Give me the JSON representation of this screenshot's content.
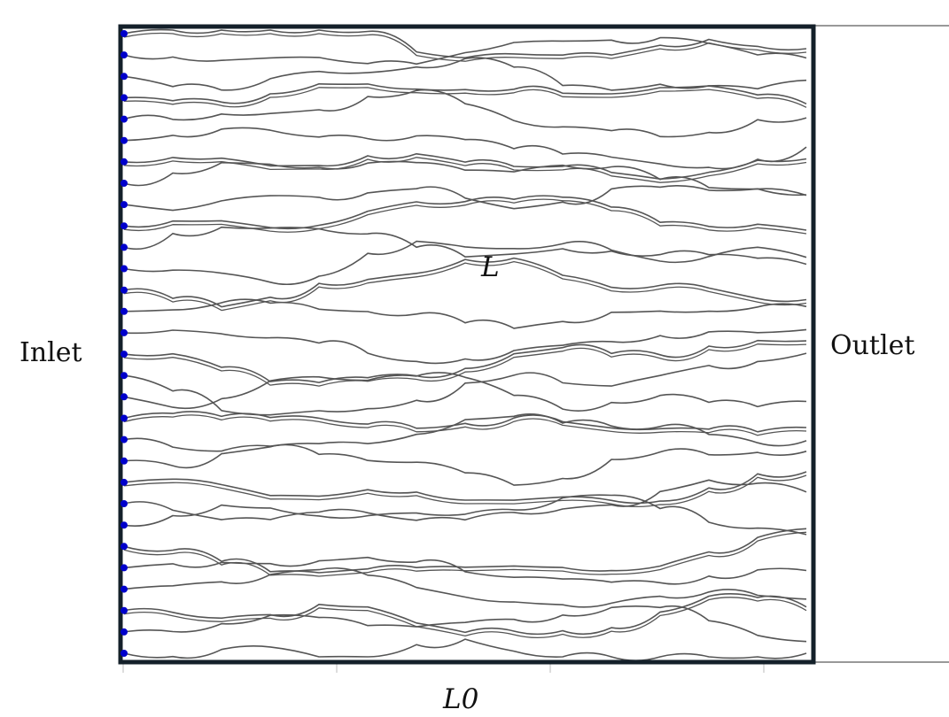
{
  "labels": {
    "inlet": "Inlet",
    "outlet": "Outlet",
    "tortuous_length": "L",
    "straight_length": "L0"
  },
  "colors": {
    "domain_border": "#14202a",
    "streamline": "#555555",
    "inlet_points": "#0000cc",
    "reference_line": "#333333"
  },
  "diagram": {
    "streamline_count": 30,
    "inlet_point_count": 30
  }
}
